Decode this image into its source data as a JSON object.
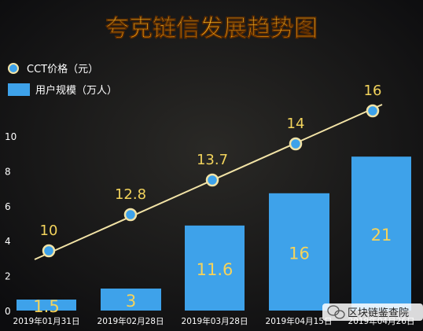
{
  "chart_data": {
    "type": "bar+line",
    "title": "夸克链信发展趋势图",
    "categories": [
      "2019年01月31日",
      "2019年02月28日",
      "2019年03月28日",
      "2019年04月15日",
      "2019年04月26日"
    ],
    "series": [
      {
        "name": "CCT价格（元）",
        "type": "line",
        "values": [
          10,
          12.8,
          13.7,
          14,
          16
        ]
      },
      {
        "name": "用户规模（万人）",
        "type": "bar",
        "values": [
          1.5,
          3,
          11.6,
          16,
          21
        ]
      }
    ],
    "y_ticks": [
      "0",
      "2",
      "4",
      "6",
      "8",
      "10"
    ],
    "legend_position": "top-left",
    "watermark": "区块链鉴查院",
    "colors": {
      "bar": "#3ea2ea",
      "line": "#f2e3a6",
      "marker_fill": "#3ea2ea",
      "marker_stroke": "#f2e3a6",
      "label_text": "#f2d35c",
      "bar_label_text": "#f6d35a",
      "title_top": "#ffcc33",
      "title_bottom": "#ff9500",
      "axis_text": "#ffffff",
      "background": "#111114"
    }
  }
}
